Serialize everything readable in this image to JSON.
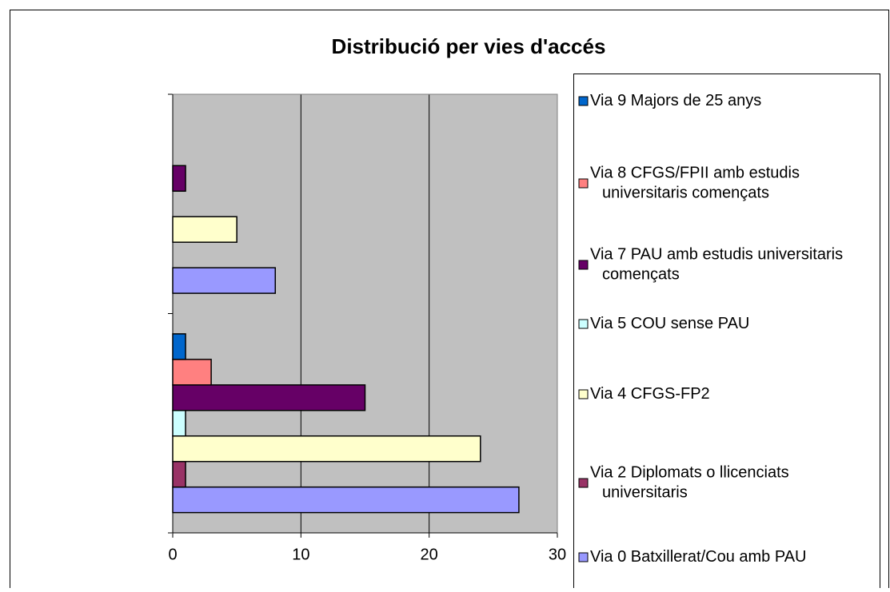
{
  "chart_data": {
    "type": "bar",
    "orientation": "horizontal",
    "title": "Distribució per vies d'accés",
    "categories": [
      null,
      null
    ],
    "series": [
      {
        "name": "Via 0   Batxillerat/Cou amb PAU",
        "color": "#9999ff",
        "values": [
          27,
          8
        ]
      },
      {
        "name": "Via 2 Diplomats o llicenciats universitaris",
        "color": "#993366",
        "values": [
          1,
          null
        ]
      },
      {
        "name": "Via 4 CFGS-FP2",
        "color": "#ffffcc",
        "values": [
          24,
          5
        ]
      },
      {
        "name": "Via 5 COU sense PAU",
        "color": "#ccffff",
        "values": [
          1,
          null
        ]
      },
      {
        "name": "Via 7 PAU amb estudis universitaris començats",
        "color": "#660066",
        "values": [
          15,
          1
        ]
      },
      {
        "name": "Via 8 CFGS/FPII amb estudis universitaris començats",
        "color": "#ff8080",
        "values": [
          3,
          null
        ]
      },
      {
        "name": "Via 9 Majors de 25 anys",
        "color": "#0066cc",
        "values": [
          1,
          null
        ]
      }
    ],
    "xlim": [
      0,
      30
    ],
    "xticks": [
      0,
      10,
      20,
      30
    ],
    "grid": true,
    "plot_background": "#c0c0c0",
    "legend": "right"
  }
}
